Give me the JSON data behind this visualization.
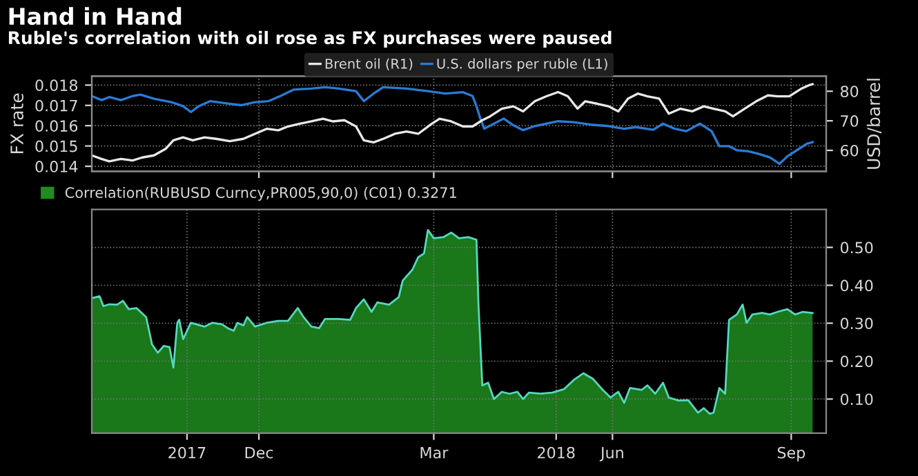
{
  "chart_data": [
    {
      "type": "line",
      "title": "Hand in Hand",
      "subtitle": "Ruble's correlation with oil rose as FX purchases were paused",
      "ylabel": "FX rate",
      "y2label": "USD/barrel",
      "xlim": [
        "2017-09-20",
        "2018-10-03"
      ],
      "xticks": [
        {
          "value": "2017-12-15",
          "label": null
        },
        {
          "value": "2018-03-15",
          "label": null
        },
        {
          "value": "2018-06-15",
          "label": null
        },
        {
          "value": "2018-09-15",
          "label": null
        }
      ],
      "ylim": [
        0.01375,
        0.01844
      ],
      "yticks": [
        0.014,
        0.015,
        0.016,
        0.017,
        0.018
      ],
      "y2lim": [
        52.9,
        85.1
      ],
      "y2ticks": [
        60,
        70,
        80
      ],
      "tick_labels": "y",
      "grid": true,
      "legend": "top",
      "line_style": "solid",
      "marker": "none",
      "series": [
        {
          "name": "Brent oil (R1)",
          "color": "#e8e8e8",
          "axis": "y2",
          "x": [
            "2017-09-20",
            "2017-09-25",
            "2017-09-29",
            "2017-10-05",
            "2017-10-11",
            "2017-10-16",
            "2017-10-22",
            "2017-10-28",
            "2017-11-01",
            "2017-11-06",
            "2017-11-11",
            "2017-11-17",
            "2017-11-23",
            "2017-11-30",
            "2017-12-07",
            "2017-12-13",
            "2017-12-19",
            "2017-12-25",
            "2017-12-30",
            "2018-01-05",
            "2018-01-11",
            "2018-01-17",
            "2018-01-22",
            "2018-01-28",
            "2018-02-03",
            "2018-02-07",
            "2018-02-12",
            "2018-02-17",
            "2018-02-23",
            "2018-03-01",
            "2018-03-07",
            "2018-03-14",
            "2018-03-18",
            "2018-03-24",
            "2018-03-30",
            "2018-04-04",
            "2018-04-09",
            "2018-04-13",
            "2018-04-19",
            "2018-04-25",
            "2018-04-30",
            "2018-05-06",
            "2018-05-12",
            "2018-05-18",
            "2018-05-23",
            "2018-05-28",
            "2018-06-01",
            "2018-06-07",
            "2018-06-13",
            "2018-06-18",
            "2018-06-23",
            "2018-06-28",
            "2018-07-03",
            "2018-07-09",
            "2018-07-14",
            "2018-07-20",
            "2018-07-26",
            "2018-08-01",
            "2018-08-06",
            "2018-08-12",
            "2018-08-16",
            "2018-08-22",
            "2018-08-28",
            "2018-09-03",
            "2018-09-08",
            "2018-09-14",
            "2018-09-20",
            "2018-09-24",
            "2018-09-26"
          ],
          "values": [
            58.3,
            57.1,
            56.3,
            57.1,
            56.6,
            57.6,
            58.3,
            60.5,
            63.4,
            64.4,
            63.4,
            64.4,
            63.9,
            63.1,
            63.9,
            65.6,
            67.3,
            66.8,
            68.1,
            69.0,
            69.8,
            70.7,
            69.8,
            70.2,
            68.1,
            63.4,
            62.7,
            63.9,
            65.6,
            66.4,
            65.6,
            69.0,
            70.7,
            69.8,
            68.1,
            68.1,
            70.2,
            71.5,
            74.1,
            74.9,
            73.2,
            76.6,
            78.3,
            79.7,
            78.3,
            74.1,
            76.6,
            75.8,
            74.9,
            73.2,
            77.5,
            79.2,
            78.3,
            77.5,
            72.4,
            74.1,
            73.2,
            74.9,
            74.1,
            73.2,
            71.5,
            74.1,
            76.6,
            78.6,
            78.3,
            78.3,
            80.8,
            82.0,
            82.4
          ]
        },
        {
          "name": "U.S. dollars per ruble (L1)",
          "color": "#2a7bd4",
          "axis": "y",
          "x": [
            "2017-09-20",
            "2017-09-25",
            "2017-09-29",
            "2017-10-05",
            "2017-10-11",
            "2017-10-15",
            "2017-10-22",
            "2017-10-31",
            "2017-11-06",
            "2017-11-10",
            "2017-11-14",
            "2017-11-20",
            "2017-11-29",
            "2017-12-06",
            "2017-12-13",
            "2017-12-20",
            "2017-12-26",
            "2018-01-02",
            "2018-01-11",
            "2018-01-18",
            "2018-01-25",
            "2018-02-03",
            "2018-02-07",
            "2018-02-12",
            "2018-02-17",
            "2018-03-01",
            "2018-03-12",
            "2018-03-21",
            "2018-03-30",
            "2018-04-04",
            "2018-04-06",
            "2018-04-08",
            "2018-04-10",
            "2018-04-15",
            "2018-04-20",
            "2018-04-25",
            "2018-04-30",
            "2018-05-06",
            "2018-05-12",
            "2018-05-18",
            "2018-05-26",
            "2018-06-04",
            "2018-06-13",
            "2018-06-21",
            "2018-06-27",
            "2018-07-06",
            "2018-07-11",
            "2018-07-17",
            "2018-07-23",
            "2018-07-30",
            "2018-08-05",
            "2018-08-09",
            "2018-08-14",
            "2018-08-18",
            "2018-08-24",
            "2018-08-29",
            "2018-09-04",
            "2018-09-09",
            "2018-09-13",
            "2018-09-19",
            "2018-09-23",
            "2018-09-26"
          ],
          "values": [
            0.01746,
            0.01726,
            0.01741,
            0.01726,
            0.01746,
            0.01753,
            0.01733,
            0.01716,
            0.01696,
            0.01667,
            0.01696,
            0.01721,
            0.01709,
            0.01701,
            0.01716,
            0.01721,
            0.01746,
            0.01778,
            0.01783,
            0.0179,
            0.01783,
            0.0177,
            0.01721,
            0.01758,
            0.0179,
            0.01783,
            0.0177,
            0.01758,
            0.01765,
            0.01746,
            0.01696,
            0.01635,
            0.01585,
            0.0161,
            0.01635,
            0.01602,
            0.01578,
            0.01598,
            0.0161,
            0.01622,
            0.01617,
            0.01605,
            0.01598,
            0.01585,
            0.01593,
            0.0158,
            0.0161,
            0.01585,
            0.01573,
            0.0161,
            0.01573,
            0.01499,
            0.01499,
            0.01479,
            0.01474,
            0.01462,
            0.01444,
            0.01412,
            0.01449,
            0.01486,
            0.01511,
            0.01519
          ]
        }
      ]
    },
    {
      "type": "area",
      "xlim": [
        "2017-09-20",
        "2018-10-03"
      ],
      "xticks": [
        {
          "value": "2017-11-08",
          "label": "2017"
        },
        {
          "value": "2017-12-15",
          "label": "Dec"
        },
        {
          "value": "2018-03-15",
          "label": "Mar"
        },
        {
          "value": "2018-05-17",
          "label": "2018"
        },
        {
          "value": "2018-06-15",
          "label": "Jun"
        },
        {
          "value": "2018-09-15",
          "label": "Sep"
        }
      ],
      "ylim": [
        0.01,
        0.6
      ],
      "yticks": [
        {
          "value": 0.1,
          "label": "0.10"
        },
        {
          "value": 0.2,
          "label": "0.20"
        },
        {
          "value": 0.3,
          "label": "0.30"
        },
        {
          "value": 0.4,
          "label": "0.40"
        },
        {
          "value": 0.5,
          "label": "0.50"
        }
      ],
      "grid": true,
      "legend": "top left",
      "series": [
        {
          "name": "Correlation(RUBUSD Curncy,PR005,90,0) (C01) 0.3271",
          "color": "#1f8c1f",
          "x": [
            "2017-09-20",
            "2017-09-24",
            "2017-09-26",
            "2017-09-29",
            "2017-10-03",
            "2017-10-06",
            "2017-10-09",
            "2017-10-13",
            "2017-10-18",
            "2017-10-21",
            "2017-10-24",
            "2017-10-27",
            "2017-10-30",
            "2017-11-01",
            "2017-11-03",
            "2017-11-04",
            "2017-11-06",
            "2017-11-10",
            "2017-11-17",
            "2017-11-21",
            "2017-11-26",
            "2017-11-29",
            "2017-12-02",
            "2017-12-04",
            "2017-12-07",
            "2017-12-09",
            "2017-12-13",
            "2017-12-19",
            "2017-12-25",
            "2017-12-30",
            "2018-01-04",
            "2018-01-07",
            "2018-01-11",
            "2018-01-15",
            "2018-01-18",
            "2018-01-25",
            "2018-01-31",
            "2018-02-03",
            "2018-02-07",
            "2018-02-11",
            "2018-02-14",
            "2018-02-20",
            "2018-02-25",
            "2018-02-27",
            "2018-03-04",
            "2018-03-07",
            "2018-03-10",
            "2018-03-12",
            "2018-03-15",
            "2018-03-20",
            "2018-03-24",
            "2018-03-28",
            "2018-04-02",
            "2018-04-06",
            "2018-04-07",
            "2018-04-09",
            "2018-04-12",
            "2018-04-15",
            "2018-04-19",
            "2018-04-23",
            "2018-04-27",
            "2018-04-30",
            "2018-05-03",
            "2018-05-09",
            "2018-05-15",
            "2018-05-21",
            "2018-05-26",
            "2018-05-31",
            "2018-06-05",
            "2018-06-10",
            "2018-06-14",
            "2018-06-18",
            "2018-06-21",
            "2018-06-24",
            "2018-06-30",
            "2018-07-03",
            "2018-07-07",
            "2018-07-11",
            "2018-07-14",
            "2018-07-19",
            "2018-07-24",
            "2018-07-29",
            "2018-08-01",
            "2018-08-04",
            "2018-08-06",
            "2018-08-09",
            "2018-08-12",
            "2018-08-14",
            "2018-08-18",
            "2018-08-21",
            "2018-08-23",
            "2018-08-26",
            "2018-08-31",
            "2018-09-04",
            "2018-09-08",
            "2018-09-13",
            "2018-09-17",
            "2018-09-21",
            "2018-09-26"
          ],
          "values": [
            0.366,
            0.371,
            0.345,
            0.35,
            0.349,
            0.359,
            0.337,
            0.34,
            0.316,
            0.244,
            0.222,
            0.24,
            0.237,
            0.183,
            0.301,
            0.309,
            0.258,
            0.301,
            0.291,
            0.301,
            0.297,
            0.287,
            0.28,
            0.301,
            0.294,
            0.316,
            0.291,
            0.301,
            0.306,
            0.306,
            0.34,
            0.316,
            0.291,
            0.287,
            0.311,
            0.311,
            0.309,
            0.34,
            0.363,
            0.33,
            0.355,
            0.349,
            0.369,
            0.412,
            0.441,
            0.474,
            0.484,
            0.546,
            0.524,
            0.527,
            0.539,
            0.524,
            0.527,
            0.52,
            0.352,
            0.136,
            0.143,
            0.1,
            0.119,
            0.114,
            0.119,
            0.1,
            0.117,
            0.114,
            0.117,
            0.126,
            0.15,
            0.168,
            0.153,
            0.124,
            0.104,
            0.119,
            0.09,
            0.129,
            0.124,
            0.136,
            0.114,
            0.143,
            0.104,
            0.096,
            0.097,
            0.064,
            0.076,
            0.061,
            0.064,
            0.129,
            0.114,
            0.309,
            0.323,
            0.349,
            0.301,
            0.323,
            0.327,
            0.323,
            0.33,
            0.337,
            0.323,
            0.33,
            0.327
          ]
        }
      ]
    }
  ]
}
